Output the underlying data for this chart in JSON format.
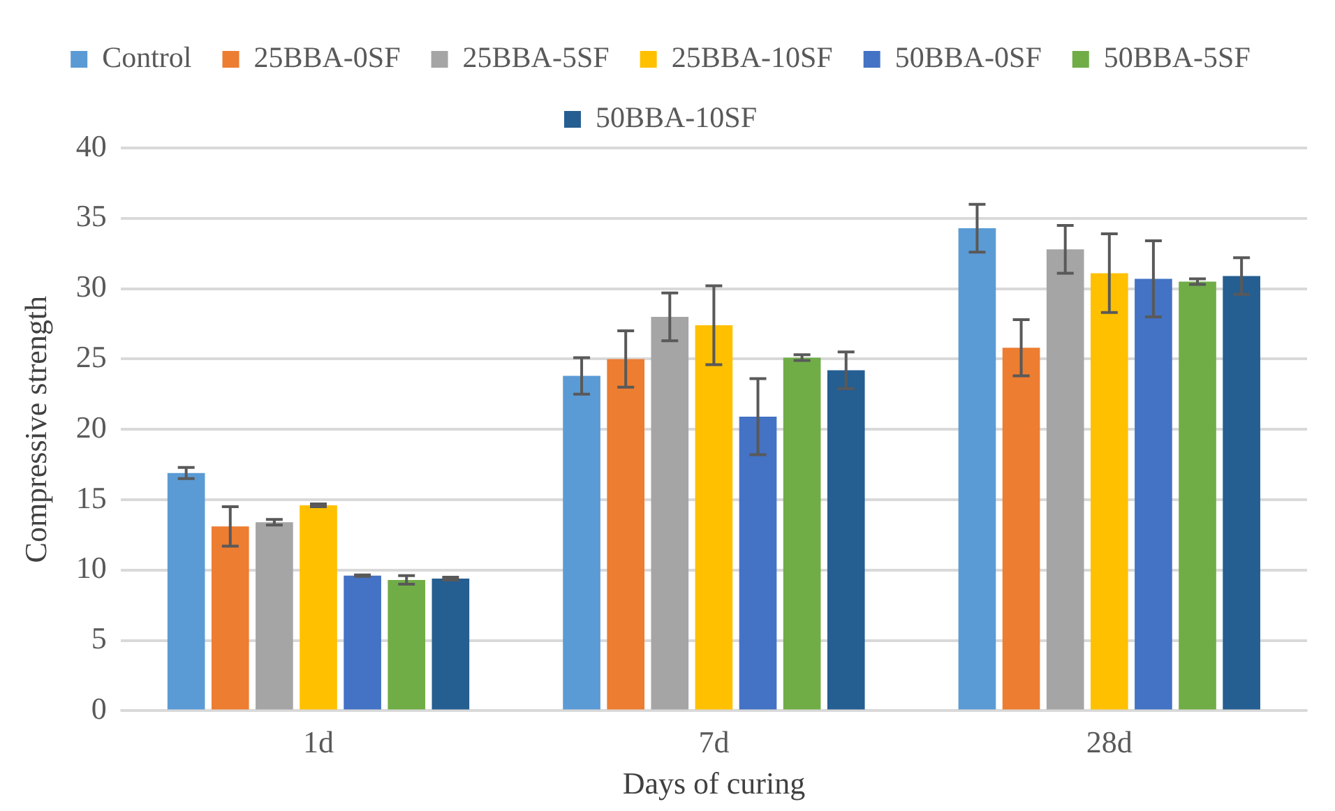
{
  "chart_data": {
    "type": "bar",
    "xlabel": "Days of curing",
    "ylabel": "Compressive strength",
    "categories": [
      "1d",
      "7d",
      "28d"
    ],
    "series": [
      {
        "name": "Control",
        "color": "#5b9bd5",
        "values": [
          16.9,
          23.8,
          34.3
        ],
        "errors": [
          0.4,
          1.3,
          1.7
        ]
      },
      {
        "name": "25BBA-0SF",
        "color": "#ed7d31",
        "values": [
          13.1,
          25.0,
          25.8
        ],
        "errors": [
          1.4,
          2.0,
          2.0
        ]
      },
      {
        "name": "25BBA-5SF",
        "color": "#a5a5a5",
        "values": [
          13.4,
          28.0,
          32.8
        ],
        "errors": [
          0.2,
          1.7,
          1.7
        ]
      },
      {
        "name": "25BBA-10SF",
        "color": "#ffc000",
        "values": [
          14.6,
          27.4,
          31.1
        ],
        "errors": [
          0.1,
          2.8,
          2.8
        ]
      },
      {
        "name": "50BBA-0SF",
        "color": "#4472c4",
        "values": [
          9.6,
          20.9,
          30.7
        ],
        "errors": [
          0.05,
          2.7,
          2.7
        ]
      },
      {
        "name": "50BBA-5SF",
        "color": "#70ad47",
        "values": [
          9.3,
          25.1,
          30.5
        ],
        "errors": [
          0.3,
          0.2,
          0.2
        ]
      },
      {
        "name": "50BBA-10SF",
        "color": "#255e91",
        "values": [
          9.4,
          24.2,
          30.9
        ],
        "errors": [
          0.1,
          1.3,
          1.3
        ]
      }
    ],
    "ylim": [
      0,
      40
    ],
    "yticks": [
      0,
      5,
      10,
      15,
      20,
      25,
      30,
      35,
      40
    ],
    "grid": "y",
    "legend": "top"
  }
}
